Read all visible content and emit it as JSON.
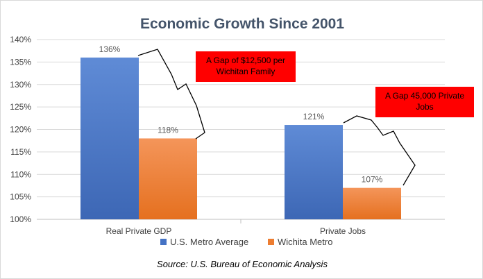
{
  "chart_data": {
    "type": "bar",
    "title": "Economic Growth Since 2001",
    "categories": [
      "Real Private GDP",
      "Private Jobs"
    ],
    "series": [
      {
        "name": "U.S. Metro Average",
        "values": [
          136,
          121
        ],
        "labels": [
          "136%",
          "121%"
        ],
        "color": "#4472c4"
      },
      {
        "name": "Wichita Metro",
        "values": [
          118,
          107
        ],
        "labels": [
          "118%",
          "107%"
        ],
        "color": "#ed7d31"
      }
    ],
    "ylim": [
      100,
      140
    ],
    "yticks": [
      100,
      105,
      110,
      115,
      120,
      125,
      130,
      135,
      140
    ],
    "ytick_labels": [
      "100%",
      "105%",
      "110%",
      "115%",
      "120%",
      "125%",
      "130%",
      "135%",
      "140%"
    ],
    "grid": true,
    "legend_position": "bottom",
    "annotations": [
      {
        "text": [
          "A Gap of $12,500 per",
          "Wichitan Family"
        ],
        "category": "Real Private GDP",
        "box_color": "#ff0000"
      },
      {
        "text": [
          "A Gap 45,000 Private",
          "Jobs"
        ],
        "category": "Private Jobs",
        "box_color": "#ff0000"
      }
    ],
    "source": "Source: U.S. Bureau of Economic Analysis"
  }
}
